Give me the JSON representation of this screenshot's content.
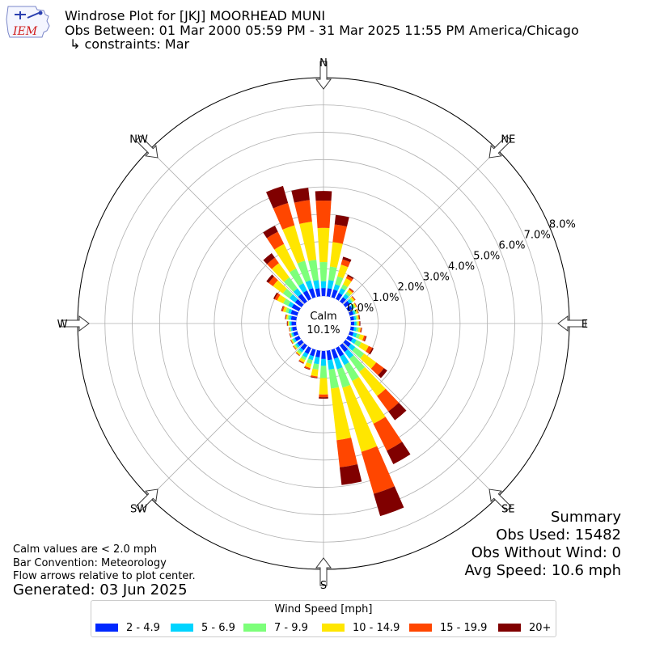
{
  "header": {
    "title_line1": "Windrose Plot for [JKJ] MOORHEAD MUNI",
    "title_line2": "Obs Between: 01 Mar 2000 05:59 PM - 31 Mar 2025 11:55 PM America/Chicago",
    "title_line3": "↳ constraints: Mar",
    "logo_text": "IEM"
  },
  "notes": {
    "calm_note": "Calm values are < 2.0 mph",
    "bar_convention": "Bar Convention: Meteorology",
    "flow_arrows": "Flow arrows relative to plot center.",
    "generated": "Generated: 03 Jun 2025"
  },
  "summary": {
    "heading": "Summary",
    "obs_used": "Obs Used: 15482",
    "obs_without_wind": "Obs Without Wind: 0",
    "avg_speed": "Avg Speed: 10.6 mph"
  },
  "chart_data": {
    "type": "windrose",
    "center_label": "Calm",
    "calm_percent": "10.1%",
    "direction_labels": [
      "N",
      "NE",
      "E",
      "SE",
      "S",
      "SW",
      "W",
      "NW"
    ],
    "radial_ticks": [
      "0.0%",
      "1.0%",
      "2.0%",
      "3.0%",
      "4.0%",
      "5.0%",
      "6.0%",
      "7.0%",
      "8.0%"
    ],
    "radial_max": 8.0,
    "calm_radius_equiv": 1.0,
    "legend_title": "Wind Speed [mph]",
    "bins": [
      "2 - 4.9",
      "5 - 6.9",
      "7 - 9.9",
      "10 - 14.9",
      "15 - 19.9",
      "20+"
    ],
    "colors": [
      "#0028ff",
      "#00d4ff",
      "#7dff7a",
      "#ffe600",
      "#ff4600",
      "#800000"
    ],
    "directions_deg": [
      0,
      10,
      20,
      30,
      40,
      50,
      60,
      70,
      80,
      90,
      100,
      110,
      120,
      130,
      140,
      150,
      160,
      170,
      180,
      190,
      200,
      210,
      220,
      230,
      240,
      250,
      260,
      270,
      280,
      290,
      300,
      310,
      320,
      330,
      340,
      350
    ],
    "cumulative_percent": [
      [
        0.3,
        0.55,
        1.25,
        2.5,
        3.5,
        3.85
      ],
      [
        0.3,
        0.6,
        1.1,
        2.0,
        2.65,
        3.0
      ],
      [
        0.3,
        0.5,
        0.8,
        1.25,
        1.45,
        1.55
      ],
      [
        0.25,
        0.45,
        0.6,
        0.85,
        0.95,
        1.0
      ],
      [
        0.2,
        0.35,
        0.45,
        0.55,
        0.6,
        0.62
      ],
      [
        0.2,
        0.3,
        0.35,
        0.42,
        0.45,
        0.46
      ],
      [
        0.18,
        0.25,
        0.3,
        0.35,
        0.37,
        0.38
      ],
      [
        0.15,
        0.22,
        0.27,
        0.32,
        0.34,
        0.35
      ],
      [
        0.13,
        0.2,
        0.25,
        0.3,
        0.33,
        0.35
      ],
      [
        0.13,
        0.2,
        0.25,
        0.3,
        0.33,
        0.35
      ],
      [
        0.13,
        0.22,
        0.3,
        0.37,
        0.4,
        0.42
      ],
      [
        0.15,
        0.28,
        0.4,
        0.55,
        0.62,
        0.65
      ],
      [
        0.2,
        0.35,
        0.55,
        0.85,
        1.0,
        1.05
      ],
      [
        0.25,
        0.45,
        0.85,
        1.4,
        1.75,
        1.9
      ],
      [
        0.3,
        0.6,
        1.2,
        2.3,
        3.0,
        3.4
      ],
      [
        0.35,
        0.7,
        1.35,
        3.1,
        4.2,
        4.75
      ],
      [
        0.35,
        0.75,
        1.45,
        3.9,
        5.5,
        6.35
      ],
      [
        0.35,
        0.7,
        1.4,
        3.3,
        4.3,
        4.95
      ],
      [
        0.3,
        0.55,
        1.0,
        1.6,
        1.7,
        1.75
      ],
      [
        0.25,
        0.5,
        0.7,
        0.95,
        1.0,
        1.02
      ],
      [
        0.25,
        0.4,
        0.55,
        0.7,
        0.75,
        0.77
      ],
      [
        0.25,
        0.4,
        0.5,
        0.6,
        0.63,
        0.65
      ],
      [
        0.22,
        0.32,
        0.4,
        0.45,
        0.47,
        0.48
      ],
      [
        0.2,
        0.28,
        0.33,
        0.37,
        0.39,
        0.4
      ],
      [
        0.18,
        0.25,
        0.3,
        0.33,
        0.35,
        0.36
      ],
      [
        0.16,
        0.22,
        0.26,
        0.28,
        0.3,
        0.31
      ],
      [
        0.16,
        0.21,
        0.24,
        0.26,
        0.27,
        0.28
      ],
      [
        0.17,
        0.23,
        0.27,
        0.3,
        0.32,
        0.34
      ],
      [
        0.2,
        0.27,
        0.33,
        0.38,
        0.4,
        0.42
      ],
      [
        0.25,
        0.35,
        0.45,
        0.55,
        0.6,
        0.62
      ],
      [
        0.3,
        0.45,
        0.65,
        0.9,
        1.0,
        1.05
      ],
      [
        0.3,
        0.55,
        0.85,
        1.3,
        1.5,
        1.6
      ],
      [
        0.35,
        0.6,
        1.1,
        1.75,
        2.0,
        2.2
      ],
      [
        0.35,
        0.65,
        1.25,
        2.25,
        2.75,
        3.0
      ],
      [
        0.35,
        0.65,
        1.4,
        2.75,
        3.6,
        4.25
      ],
      [
        0.3,
        0.6,
        1.35,
        2.75,
        3.55,
        4.0
      ]
    ]
  }
}
